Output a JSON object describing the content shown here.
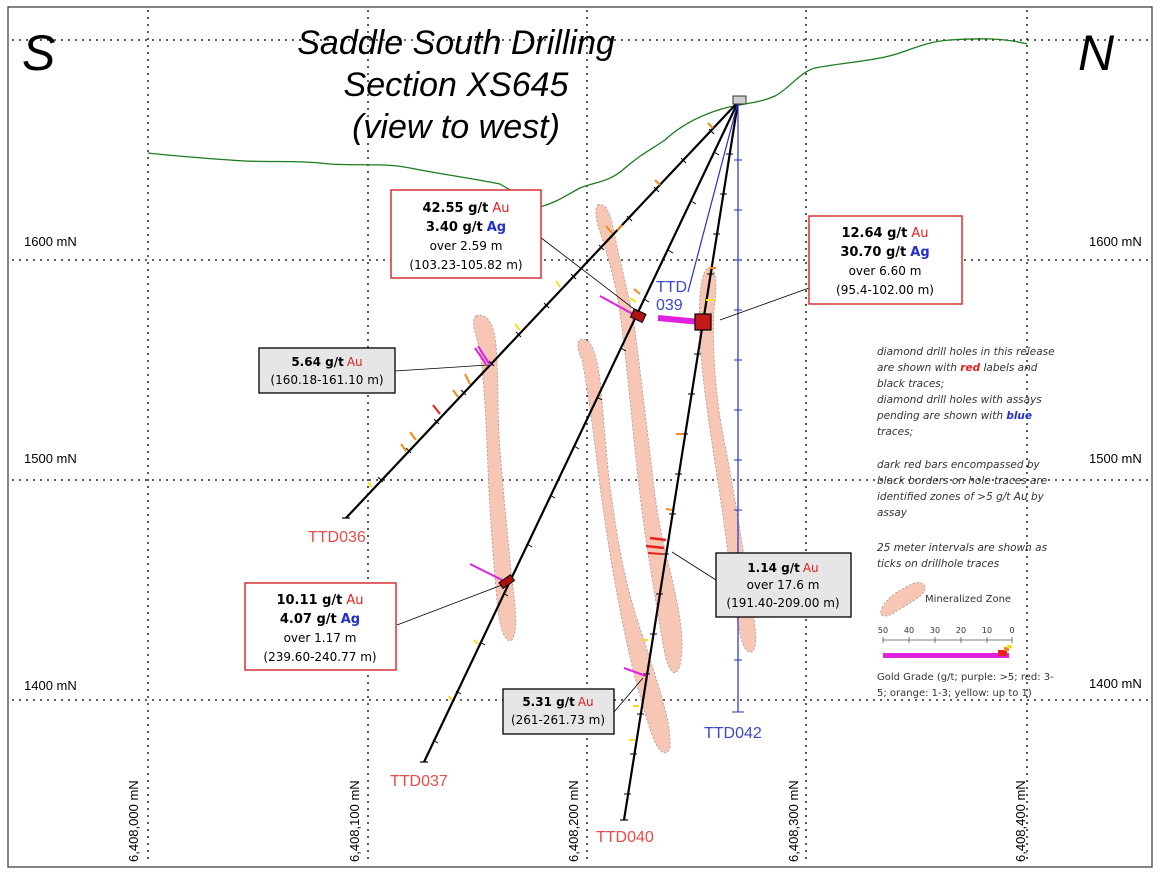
{
  "title": {
    "line1": "Saddle South Drilling",
    "line2": "Section XS645",
    "line3": "(view to west)"
  },
  "directions": {
    "left": "S",
    "right": "N"
  },
  "elevation_labels": [
    "1600 mN",
    "1500 mN",
    "1400 mN"
  ],
  "easting_labels": [
    "6,408,000 mN",
    "6,408,100 mN",
    "6,408,200 mN",
    "6,408,300 mN",
    "6,408,400 mN"
  ],
  "drill_holes": {
    "ttd036": "TTD036",
    "ttd037": "TTD037",
    "ttd040": "TTD040",
    "ttd039": "TTD\n039",
    "ttd039_line1": "TTD",
    "ttd039_line2": "039",
    "ttd042": "TTD042"
  },
  "callouts": {
    "c1": {
      "grade": "42.55 g/t",
      "au": "Au",
      "ag_grade": "3.40 g/t",
      "ag": "Ag",
      "over": "over 2.59 m",
      "interval": "(103.23-105.82 m)"
    },
    "c2": {
      "grade": "12.64 g/t",
      "au": "Au",
      "ag_grade": "30.70 g/t",
      "ag": "Ag",
      "over": "over 6.60 m",
      "interval": "(95.4-102.00 m)"
    },
    "c3": {
      "grade": "5.64 g/t",
      "au": "Au",
      "interval": "(160.18-161.10 m)"
    },
    "c4": {
      "grade": "10.11 g/t",
      "au": "Au",
      "ag_grade": "4.07 g/t",
      "ag": "Ag",
      "over": "over 1.17 m",
      "interval": "(239.60-240.77 m)"
    },
    "c5": {
      "grade": "1.14 g/t",
      "au": "Au",
      "over": "over 17.6 m",
      "interval": "(191.40-209.00 m)"
    },
    "c6": {
      "grade": "5.31 g/t",
      "au": "Au",
      "interval": "(261-261.73 m)"
    }
  },
  "legend": {
    "line1": "diamond drill holes in this release",
    "line2_a": "are shown with ",
    "line2_red": "red",
    "line2_b": " labels and",
    "line3": "black traces;",
    "line4": "diamond drill holes with assays",
    "line5_a": "pending are shown with ",
    "line5_blue": "blue",
    "line6": "traces;",
    "line7": "dark red bars encompassed by",
    "line8": "black borders on hole traces are",
    "line9": "identified zones of >5 g/t Au by",
    "line10": "assay",
    "line11": "25 meter intervals are shown as",
    "line12": "ticks on drillhole traces",
    "mineralized_zone": "Mineralized Zone",
    "scale_ticks": [
      "50",
      "40",
      "30",
      "20",
      "10",
      "0"
    ],
    "gold_grade_1": "Gold Grade (g/t; purple: >5; red: 3-",
    "gold_grade_2": "5; orange: 1-3; yellow: up to 1)"
  },
  "colors": {
    "topography": "#1e7a1e",
    "mineralized_fill": "#f7c6b4",
    "assay_pending": "#2330c8",
    "high_grade": "#b01010",
    "label_red": "#e84a4a",
    "grade_purple": "#e021e0",
    "grade_red": "#e82020",
    "grade_orange": "#f08a1a",
    "grade_yellow": "#f2e21a"
  }
}
